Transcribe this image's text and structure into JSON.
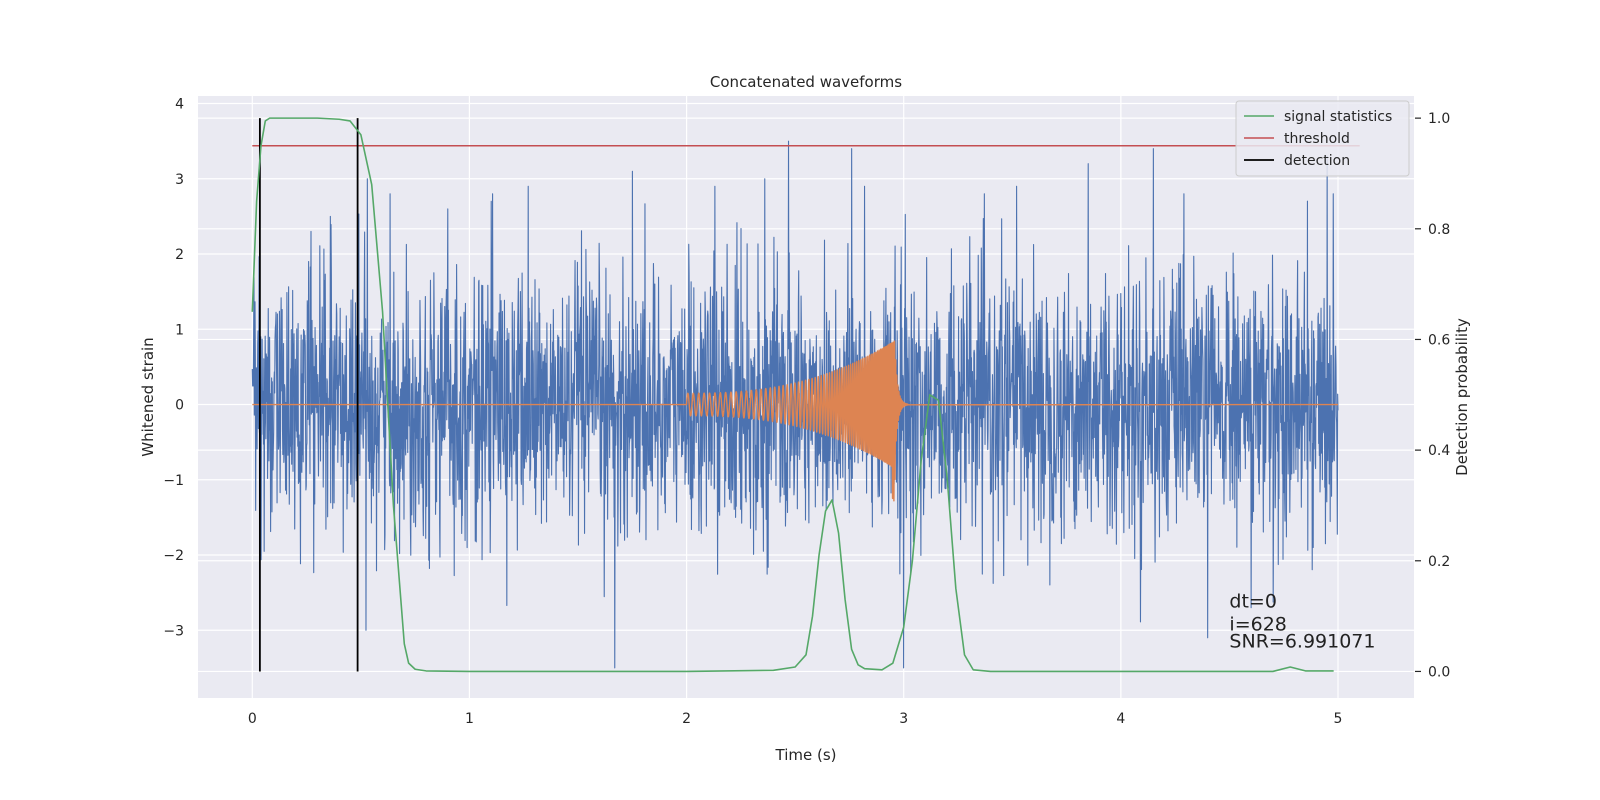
{
  "chart_data": {
    "type": "line",
    "title": "Concatenated waveforms",
    "xlabel": "Time (s)",
    "ylabel": "Whitened strain",
    "y2label": "Detection probability",
    "xlim": [
      -0.25,
      5.35
    ],
    "ylim": [
      -3.9,
      4.1
    ],
    "y2lim": [
      -0.048,
      1.04
    ],
    "x_ticks": [
      0,
      1,
      2,
      3,
      4,
      5
    ],
    "x_tick_labels": [
      "0",
      "1",
      "2",
      "3",
      "4",
      "5"
    ],
    "y_ticks": [
      -3,
      -2,
      -1,
      0,
      1,
      2,
      3,
      4
    ],
    "y_tick_labels": [
      "−3",
      "−2",
      "−1",
      "0",
      "1",
      "2",
      "3",
      "4"
    ],
    "y2_ticks": [
      0.0,
      0.2,
      0.4,
      0.6,
      0.8,
      1.0
    ],
    "y2_tick_labels": [
      "0.0",
      "0.2",
      "0.4",
      "0.6",
      "0.8",
      "1.0"
    ],
    "grid": true,
    "legend_position": "top-right",
    "series": [
      {
        "kind": "noise",
        "axis": "left",
        "color": "#4c72b0",
        "x_range": [
          0,
          5
        ],
        "amplitude_sigma": 0.85,
        "peak_points": [
          [
            0.27,
            2.3
          ],
          [
            0.36,
            2.5
          ],
          [
            0.53,
            3.0
          ],
          [
            0.9,
            2.6
          ],
          [
            1.1,
            2.7
          ],
          [
            1.27,
            2.9
          ],
          [
            1.67,
            -3.5
          ],
          [
            1.75,
            3.1
          ],
          [
            2.13,
            2.9
          ],
          [
            2.36,
            3.0
          ],
          [
            2.47,
            3.5
          ],
          [
            2.76,
            3.4
          ],
          [
            2.82,
            2.9
          ],
          [
            3.0,
            -3.5
          ],
          [
            3.52,
            2.9
          ],
          [
            3.85,
            3.2
          ],
          [
            4.15,
            3.4
          ],
          [
            4.4,
            -3.1
          ],
          [
            4.6,
            -2.7
          ],
          [
            4.95,
            3.3
          ]
        ]
      },
      {
        "kind": "chirp",
        "axis": "left",
        "color": "#dd8452",
        "t_start": 2.0,
        "t_merge": 2.96,
        "t_ringdown_end": 3.02,
        "amp_start": 0.15,
        "amp_peak": 0.85,
        "amp_min_negative": -1.3,
        "freq_start": 40,
        "freq_end": 170
      },
      {
        "name": "signal statistics",
        "axis": "right",
        "color": "#55a868",
        "x": [
          0.0,
          0.02,
          0.04,
          0.06,
          0.08,
          0.1,
          0.2,
          0.3,
          0.4,
          0.45,
          0.5,
          0.55,
          0.6,
          0.65,
          0.7,
          0.72,
          0.75,
          0.8,
          1.0,
          2.0,
          2.4,
          2.5,
          2.55,
          2.58,
          2.61,
          2.64,
          2.67,
          2.7,
          2.73,
          2.76,
          2.79,
          2.82,
          2.9,
          2.95,
          3.0,
          3.04,
          3.08,
          3.12,
          3.16,
          3.2,
          3.24,
          3.28,
          3.32,
          3.4,
          4.0,
          4.7,
          4.78,
          4.85,
          4.98
        ],
        "y": [
          0.65,
          0.85,
          0.95,
          0.995,
          1.0,
          1.0,
          1.0,
          1.0,
          0.998,
          0.995,
          0.97,
          0.88,
          0.65,
          0.3,
          0.05,
          0.015,
          0.004,
          0.001,
          0.0,
          0.0,
          0.002,
          0.008,
          0.03,
          0.1,
          0.21,
          0.29,
          0.31,
          0.25,
          0.13,
          0.04,
          0.012,
          0.005,
          0.003,
          0.015,
          0.08,
          0.2,
          0.38,
          0.5,
          0.49,
          0.35,
          0.15,
          0.03,
          0.003,
          0.0,
          0.0,
          0.0,
          0.008,
          0.001,
          0.001
        ]
      },
      {
        "name": "threshold",
        "axis": "right",
        "color": "#c44e52",
        "x": [
          0.0,
          5.1
        ],
        "y": [
          0.95,
          0.95
        ]
      },
      {
        "name": "detection",
        "axis": "right",
        "color": "#000000",
        "x_positions": [
          0.035,
          0.485
        ],
        "y_span": [
          0.0,
          1.0
        ]
      }
    ],
    "annotations": [
      {
        "text": "dt=0",
        "x": 4.5,
        "y": -2.7
      },
      {
        "text": "i=628",
        "x": 4.5,
        "y": -3.0
      },
      {
        "text": "SNR=6.991071",
        "x": 4.5,
        "y": -3.23
      }
    ]
  }
}
